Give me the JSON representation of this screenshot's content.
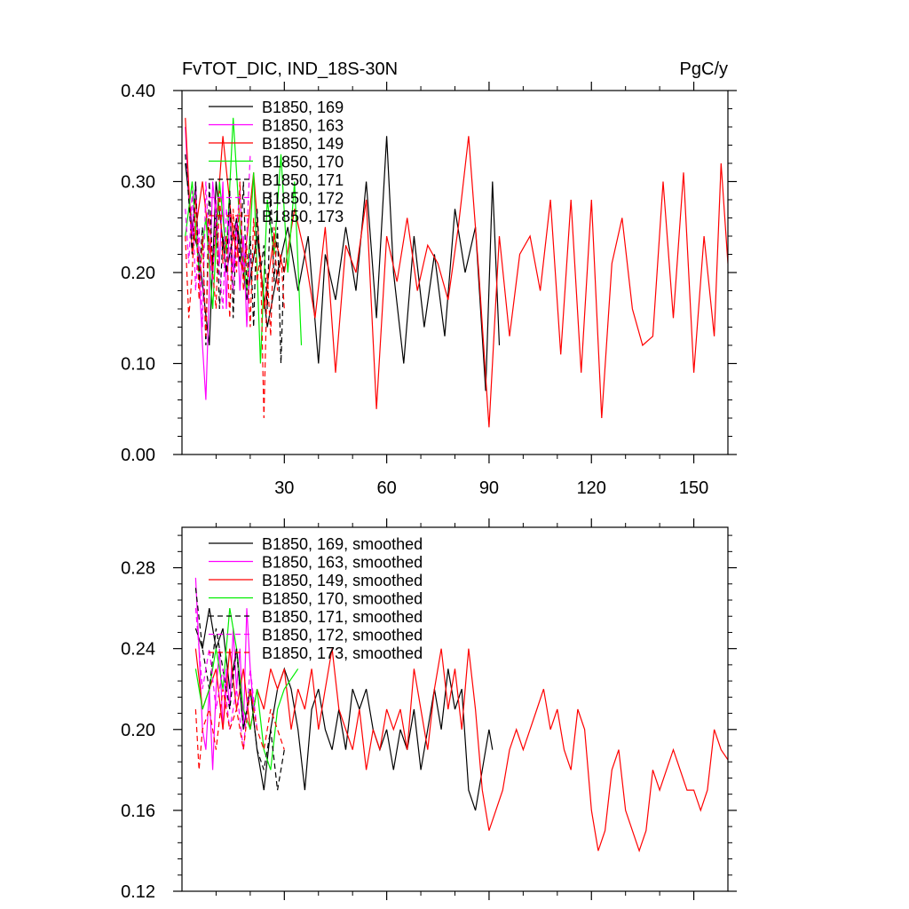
{
  "chart_data": [
    {
      "type": "line",
      "title": "FvTOT_DIC, IND_18S-30N",
      "units": "PgC/y",
      "xlim": [
        0,
        160
      ],
      "ylim": [
        0.0,
        0.4
      ],
      "xticks": [
        30,
        60,
        90,
        120,
        150
      ],
      "xtick_labels": [
        "30",
        "60",
        "90",
        "120",
        "150"
      ],
      "yticks": [
        0.0,
        0.1,
        0.2,
        0.3,
        0.4
      ],
      "ytick_labels": [
        "0.00",
        "0.10",
        "0.20",
        "0.30",
        "0.40"
      ],
      "legend_position": "top-left",
      "series": [
        {
          "name": "B1850, 169",
          "color": "#000000",
          "dash": "solid",
          "x": [
            1,
            3,
            5,
            8,
            10,
            13,
            16,
            19,
            22,
            25,
            28,
            31,
            34,
            37,
            40,
            42,
            45,
            48,
            51,
            54,
            57,
            60,
            62,
            65,
            68,
            71,
            74,
            77,
            80,
            83,
            86,
            89,
            91,
            93
          ],
          "y": [
            0.32,
            0.25,
            0.22,
            0.12,
            0.3,
            0.2,
            0.26,
            0.17,
            0.24,
            0.14,
            0.2,
            0.25,
            0.18,
            0.24,
            0.1,
            0.22,
            0.17,
            0.25,
            0.18,
            0.3,
            0.15,
            0.35,
            0.2,
            0.1,
            0.24,
            0.14,
            0.22,
            0.13,
            0.27,
            0.2,
            0.25,
            0.07,
            0.3,
            0.12
          ]
        },
        {
          "name": "B1850, 163",
          "color": "#ff00ff",
          "dash": "solid",
          "x": [
            1,
            2,
            3,
            4,
            5,
            6,
            7,
            8,
            9,
            10,
            11,
            12,
            13,
            14,
            15,
            16,
            17,
            18,
            19,
            20
          ],
          "y": [
            0.36,
            0.28,
            0.24,
            0.3,
            0.2,
            0.12,
            0.06,
            0.18,
            0.3,
            0.26,
            0.21,
            0.3,
            0.16,
            0.27,
            0.2,
            0.26,
            0.18,
            0.24,
            0.14,
            0.22
          ]
        },
        {
          "name": "B1850, 149",
          "color": "#ff0000",
          "dash": "solid",
          "x": [
            1,
            3,
            6,
            9,
            12,
            15,
            18,
            21,
            24,
            27,
            30,
            33,
            36,
            39,
            42,
            45,
            48,
            51,
            54,
            57,
            60,
            63,
            66,
            69,
            72,
            75,
            78,
            81,
            84,
            87,
            90,
            93,
            96,
            99,
            102,
            105,
            108,
            111,
            114,
            117,
            120,
            123,
            126,
            129,
            132,
            135,
            138,
            141,
            144,
            147,
            150,
            153,
            156,
            158,
            160
          ],
          "y": [
            0.37,
            0.22,
            0.3,
            0.2,
            0.35,
            0.24,
            0.2,
            0.31,
            0.16,
            0.24,
            0.2,
            0.27,
            0.22,
            0.15,
            0.25,
            0.09,
            0.23,
            0.2,
            0.28,
            0.05,
            0.24,
            0.19,
            0.26,
            0.18,
            0.23,
            0.21,
            0.17,
            0.25,
            0.35,
            0.2,
            0.03,
            0.24,
            0.13,
            0.22,
            0.24,
            0.18,
            0.28,
            0.11,
            0.28,
            0.09,
            0.28,
            0.04,
            0.21,
            0.26,
            0.16,
            0.12,
            0.13,
            0.3,
            0.15,
            0.31,
            0.09,
            0.24,
            0.13,
            0.32,
            0.21
          ]
        },
        {
          "name": "B1850, 170",
          "color": "#00ee00",
          "dash": "solid",
          "x": [
            1,
            3,
            5,
            7,
            9,
            11,
            13,
            15,
            17,
            19,
            21,
            23,
            25,
            27,
            29,
            31,
            33,
            35
          ],
          "y": [
            0.24,
            0.3,
            0.2,
            0.26,
            0.16,
            0.3,
            0.22,
            0.37,
            0.25,
            0.18,
            0.31,
            0.1,
            0.28,
            0.22,
            0.33,
            0.2,
            0.3,
            0.12
          ]
        },
        {
          "name": "B1850, 171",
          "color": "#000000",
          "dash": "dashed",
          "x": [
            1,
            2,
            3,
            4,
            5,
            6,
            7,
            8,
            9,
            10,
            11,
            12,
            13,
            14,
            15,
            16,
            17,
            18,
            19,
            20,
            21,
            22,
            23,
            24,
            25,
            26,
            27,
            28,
            29,
            30
          ],
          "y": [
            0.33,
            0.28,
            0.22,
            0.3,
            0.19,
            0.25,
            0.12,
            0.3,
            0.2,
            0.27,
            0.16,
            0.24,
            0.2,
            0.29,
            0.15,
            0.26,
            0.21,
            0.3,
            0.18,
            0.24,
            0.14,
            0.27,
            0.2,
            0.23,
            0.16,
            0.29,
            0.19,
            0.25,
            0.1,
            0.22
          ]
        },
        {
          "name": "B1850, 172",
          "color": "#ff00ff",
          "dash": "dashed",
          "x": [
            1,
            2,
            3,
            4,
            5,
            6,
            7,
            8,
            9,
            10,
            11,
            12,
            13,
            14,
            15,
            16,
            17,
            18,
            19,
            20
          ],
          "y": [
            0.27,
            0.21,
            0.29,
            0.18,
            0.25,
            0.14,
            0.3,
            0.22,
            0.19,
            0.28,
            0.2,
            0.16,
            0.27,
            0.23,
            0.18,
            0.25,
            0.29,
            0.2,
            0.24,
            0.33
          ]
        },
        {
          "name": "B1850, 173",
          "color": "#ff0000",
          "dash": "dashed",
          "x": [
            1,
            2,
            3,
            4,
            5,
            6,
            7,
            8,
            9,
            10,
            11,
            12,
            13,
            14,
            15,
            16,
            17,
            18,
            19,
            20,
            21,
            22,
            23,
            24,
            25,
            26,
            27,
            28,
            29,
            30
          ],
          "y": [
            0.24,
            0.15,
            0.2,
            0.28,
            0.17,
            0.24,
            0.13,
            0.26,
            0.2,
            0.16,
            0.29,
            0.21,
            0.24,
            0.15,
            0.27,
            0.2,
            0.3,
            0.18,
            0.23,
            0.14,
            0.26,
            0.19,
            0.22,
            0.04,
            0.2,
            0.13,
            0.25,
            0.18,
            0.22,
            0.16
          ]
        }
      ]
    },
    {
      "type": "line",
      "xlim": [
        0,
        160
      ],
      "ylim": [
        0.12,
        0.3
      ],
      "xticks": [
        30,
        60,
        90,
        120,
        150
      ],
      "yticks": [
        0.12,
        0.16,
        0.2,
        0.24,
        0.28
      ],
      "ytick_labels": [
        "0.12",
        "0.16",
        "0.20",
        "0.24",
        "0.28"
      ],
      "legend_position": "top-left",
      "series": [
        {
          "name": "B1850, 169, smoothed",
          "color": "#000000",
          "dash": "solid",
          "x": [
            4,
            6,
            8,
            10,
            12,
            14,
            16,
            18,
            20,
            22,
            24,
            26,
            28,
            30,
            32,
            34,
            36,
            38,
            40,
            42,
            44,
            46,
            48,
            50,
            52,
            54,
            56,
            58,
            60,
            62,
            64,
            66,
            68,
            70,
            72,
            74,
            76,
            78,
            80,
            82,
            84,
            86,
            88,
            90,
            91
          ],
          "y": [
            0.25,
            0.24,
            0.26,
            0.24,
            0.25,
            0.22,
            0.24,
            0.2,
            0.22,
            0.19,
            0.17,
            0.2,
            0.22,
            0.23,
            0.22,
            0.2,
            0.17,
            0.21,
            0.22,
            0.2,
            0.19,
            0.21,
            0.19,
            0.22,
            0.21,
            0.22,
            0.2,
            0.19,
            0.2,
            0.18,
            0.2,
            0.19,
            0.21,
            0.18,
            0.2,
            0.22,
            0.2,
            0.23,
            0.21,
            0.22,
            0.17,
            0.16,
            0.18,
            0.2,
            0.19
          ]
        },
        {
          "name": "B1850, 163, smoothed",
          "color": "#ff00ff",
          "dash": "solid",
          "x": [
            4,
            5,
            6,
            7,
            8,
            9,
            10,
            11,
            12,
            13,
            14,
            15,
            16,
            17,
            18,
            19,
            20,
            21
          ],
          "y": [
            0.275,
            0.24,
            0.2,
            0.19,
            0.22,
            0.18,
            0.22,
            0.24,
            0.2,
            0.23,
            0.21,
            0.25,
            0.22,
            0.24,
            0.2,
            0.26,
            0.23,
            0.21
          ]
        },
        {
          "name": "B1850, 149, smoothed",
          "color": "#ff0000",
          "dash": "solid",
          "x": [
            4,
            6,
            8,
            10,
            12,
            14,
            16,
            18,
            20,
            22,
            24,
            26,
            28,
            30,
            32,
            34,
            36,
            38,
            40,
            42,
            44,
            46,
            48,
            50,
            52,
            54,
            56,
            58,
            60,
            62,
            64,
            66,
            68,
            70,
            72,
            74,
            76,
            78,
            80,
            82,
            84,
            86,
            88,
            90,
            92,
            94,
            96,
            98,
            100,
            102,
            104,
            106,
            108,
            110,
            112,
            114,
            116,
            118,
            120,
            122,
            124,
            126,
            128,
            130,
            132,
            134,
            136,
            138,
            140,
            142,
            144,
            146,
            148,
            150,
            152,
            154,
            156,
            158,
            160
          ],
          "y": [
            0.24,
            0.21,
            0.22,
            0.23,
            0.2,
            0.24,
            0.21,
            0.23,
            0.2,
            0.22,
            0.21,
            0.23,
            0.22,
            0.23,
            0.2,
            0.22,
            0.21,
            0.23,
            0.2,
            0.22,
            0.24,
            0.21,
            0.2,
            0.19,
            0.21,
            0.18,
            0.2,
            0.19,
            0.21,
            0.2,
            0.21,
            0.19,
            0.23,
            0.21,
            0.19,
            0.22,
            0.24,
            0.21,
            0.23,
            0.2,
            0.24,
            0.21,
            0.17,
            0.15,
            0.16,
            0.17,
            0.19,
            0.2,
            0.19,
            0.2,
            0.21,
            0.22,
            0.2,
            0.21,
            0.19,
            0.18,
            0.21,
            0.2,
            0.16,
            0.14,
            0.15,
            0.18,
            0.19,
            0.16,
            0.15,
            0.14,
            0.15,
            0.18,
            0.17,
            0.18,
            0.19,
            0.18,
            0.17,
            0.17,
            0.16,
            0.17,
            0.2,
            0.19,
            0.185
          ]
        },
        {
          "name": "B1850, 170, smoothed",
          "color": "#00ee00",
          "dash": "solid",
          "x": [
            4,
            6,
            8,
            10,
            12,
            14,
            16,
            18,
            20,
            22,
            24,
            26,
            28,
            30,
            32,
            34
          ],
          "y": [
            0.23,
            0.21,
            0.22,
            0.24,
            0.22,
            0.26,
            0.24,
            0.21,
            0.2,
            0.22,
            0.19,
            0.18,
            0.21,
            0.22,
            0.225,
            0.23
          ]
        },
        {
          "name": "B1850, 171, smoothed",
          "color": "#000000",
          "dash": "dashed",
          "x": [
            4,
            6,
            8,
            10,
            12,
            14,
            16,
            18,
            20,
            22,
            24,
            26,
            28,
            30
          ],
          "y": [
            0.27,
            0.24,
            0.22,
            0.25,
            0.23,
            0.21,
            0.24,
            0.2,
            0.22,
            0.19,
            0.18,
            0.2,
            0.17,
            0.19
          ]
        },
        {
          "name": "B1850, 172, smoothed",
          "color": "#ff00ff",
          "dash": "dashed",
          "x": [
            4,
            6,
            8,
            10,
            12,
            14,
            16,
            18,
            20,
            22
          ],
          "y": [
            0.26,
            0.22,
            0.24,
            0.21,
            0.23,
            0.2,
            0.22,
            0.19,
            0.23,
            0.2
          ]
        },
        {
          "name": "B1850, 173, smoothed",
          "color": "#ff0000",
          "dash": "dashed",
          "x": [
            4,
            5,
            6,
            8,
            10,
            12,
            14,
            16,
            18,
            20,
            22,
            24,
            26,
            28,
            30
          ],
          "y": [
            0.21,
            0.18,
            0.2,
            0.21,
            0.19,
            0.22,
            0.2,
            0.21,
            0.19,
            0.22,
            0.2,
            0.19,
            0.21,
            0.2,
            0.19
          ]
        }
      ]
    }
  ]
}
